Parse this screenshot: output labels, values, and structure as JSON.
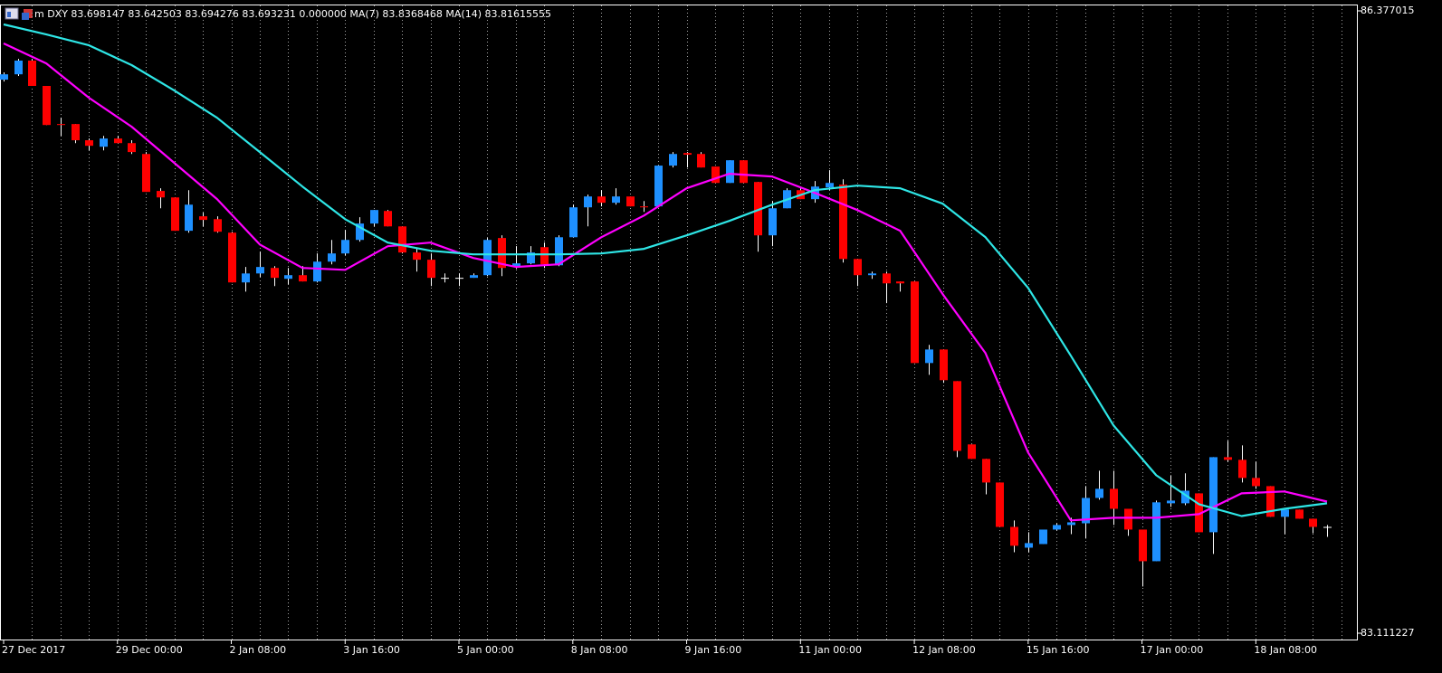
{
  "chart_data": {
    "type": "candlestick",
    "title": "m DXY 83.698147 83.642503 83.694276 83.693231 0.000000 MA(7) 83.8368468 MA(14) 83.81615555",
    "up_color": "#1e90ff",
    "down_color": "#ff0000",
    "wick_color": "#ffffff",
    "grid": true,
    "ylim": [
      83.111227,
      86.377015
    ],
    "yticks": [
      86.377015,
      83.111227
    ],
    "xticks": [
      {
        "value": 0,
        "label": "27 Dec 2017"
      },
      {
        "value": 8,
        "label": "29 Dec 00:00"
      },
      {
        "value": 16,
        "label": "2 Jan 08:00"
      },
      {
        "value": 24,
        "label": "3 Jan 16:00"
      },
      {
        "value": 32,
        "label": "5 Jan 00:00"
      },
      {
        "value": 40,
        "label": "8 Jan 08:00"
      },
      {
        "value": 48,
        "label": "9 Jan 16:00"
      },
      {
        "value": 56,
        "label": "11 Jan 00:00"
      },
      {
        "value": 64,
        "label": "12 Jan 08:00"
      },
      {
        "value": 72,
        "label": "15 Jan 16:00"
      },
      {
        "value": 80,
        "label": "17 Jan 00:00"
      },
      {
        "value": 88,
        "label": "18 Jan 08:00"
      }
    ],
    "open": [
      86.016,
      86.044,
      86.116,
      85.983,
      85.783,
      85.783,
      85.698,
      85.664,
      85.707,
      85.683,
      85.626,
      85.432,
      85.398,
      85.223,
      85.299,
      85.284,
      85.213,
      84.952,
      84.999,
      85.028,
      84.971,
      84.99,
      84.957,
      85.061,
      85.104,
      85.175,
      85.261,
      85.327,
      85.246,
      85.109,
      85.071,
      84.976,
      84.976,
      84.976,
      84.99,
      85.185,
      85.037,
      85.052,
      85.137,
      85.042,
      85.189,
      85.346,
      85.403,
      85.37,
      85.403,
      85.351,
      85.351,
      85.565,
      85.631,
      85.626,
      85.56,
      85.474,
      85.593,
      85.479,
      85.199,
      85.341,
      85.436,
      85.389,
      85.451,
      85.465,
      85.075,
      84.99,
      84.999,
      84.957,
      84.957,
      84.529,
      84.6,
      84.434,
      84.102,
      84.026,
      83.902,
      83.669,
      83.56,
      83.579,
      83.655,
      83.679,
      83.688,
      83.821,
      83.869,
      83.764,
      83.655,
      83.489,
      83.793,
      83.793,
      83.845,
      83.641,
      84.035,
      84.021,
      83.926,
      83.883,
      83.722,
      83.76,
      83.712,
      83.669
    ],
    "high": [
      86.054,
      86.125,
      86.125,
      85.983,
      85.816,
      85.783,
      85.707,
      85.721,
      85.721,
      85.698,
      85.636,
      85.446,
      85.398,
      85.436,
      85.318,
      85.299,
      85.218,
      85.033,
      85.113,
      85.037,
      85.028,
      85.037,
      85.104,
      85.175,
      85.227,
      85.294,
      85.332,
      85.332,
      85.246,
      85.128,
      85.104,
      84.999,
      84.999,
      84.999,
      85.185,
      85.199,
      85.142,
      85.142,
      85.161,
      85.199,
      85.36,
      85.413,
      85.436,
      85.446,
      85.403,
      85.379,
      85.565,
      85.636,
      85.636,
      85.636,
      85.56,
      85.593,
      85.593,
      85.479,
      85.379,
      85.446,
      85.455,
      85.484,
      85.541,
      85.493,
      85.075,
      85.009,
      85.009,
      84.957,
      84.957,
      84.624,
      84.6,
      84.434,
      84.102,
      84.026,
      83.902,
      83.703,
      83.641,
      83.655,
      83.688,
      83.717,
      83.883,
      83.964,
      83.964,
      83.764,
      83.655,
      83.807,
      83.94,
      83.95,
      83.845,
      84.035,
      84.121,
      84.097,
      84.011,
      83.883,
      83.76,
      83.76,
      83.712,
      83.679
    ],
    "low": [
      86.006,
      86.035,
      85.983,
      85.778,
      85.721,
      85.683,
      85.645,
      85.645,
      85.683,
      85.626,
      85.427,
      85.341,
      85.223,
      85.213,
      85.246,
      85.213,
      84.952,
      84.904,
      84.98,
      84.933,
      84.942,
      84.957,
      84.952,
      85.047,
      85.094,
      85.166,
      85.246,
      85.246,
      85.104,
      85.009,
      84.933,
      84.952,
      84.933,
      84.976,
      84.985,
      84.985,
      85.023,
      85.047,
      85.028,
      85.037,
      85.189,
      85.246,
      85.351,
      85.36,
      85.351,
      85.322,
      85.346,
      85.555,
      85.555,
      85.555,
      85.474,
      85.474,
      85.474,
      85.113,
      85.142,
      85.341,
      85.389,
      85.37,
      85.436,
      85.056,
      84.933,
      84.971,
      84.843,
      84.904,
      84.529,
      84.467,
      84.425,
      84.035,
      84.026,
      83.84,
      83.669,
      83.536,
      83.536,
      83.579,
      83.65,
      83.631,
      83.608,
      83.812,
      83.679,
      83.622,
      83.356,
      83.489,
      83.774,
      83.783,
      83.641,
      83.527,
      84.011,
      83.902,
      83.869,
      83.722,
      83.631,
      83.712,
      83.636,
      83.617
    ],
    "close": [
      86.044,
      86.116,
      85.983,
      85.778,
      85.778,
      85.698,
      85.669,
      85.707,
      85.683,
      85.636,
      85.427,
      85.398,
      85.223,
      85.36,
      85.28,
      85.218,
      84.952,
      84.999,
      85.033,
      84.976,
      84.99,
      84.957,
      85.061,
      85.104,
      85.175,
      85.261,
      85.332,
      85.246,
      85.109,
      85.071,
      84.976,
      84.976,
      84.976,
      84.99,
      85.175,
      85.028,
      85.052,
      85.109,
      85.047,
      85.189,
      85.346,
      85.403,
      85.37,
      85.403,
      85.351,
      85.346,
      85.565,
      85.626,
      85.622,
      85.555,
      85.474,
      85.593,
      85.474,
      85.199,
      85.341,
      85.436,
      85.389,
      85.455,
      85.474,
      85.075,
      84.99,
      84.999,
      84.947,
      84.947,
      84.529,
      84.6,
      84.439,
      84.068,
      84.026,
      83.902,
      83.669,
      83.57,
      83.584,
      83.655,
      83.679,
      83.693,
      83.821,
      83.869,
      83.764,
      83.655,
      83.489,
      83.798,
      83.807,
      83.859,
      83.641,
      84.035,
      84.021,
      83.926,
      83.883,
      83.722,
      83.76,
      83.712,
      83.669,
      83.669
    ],
    "lines": [
      {
        "color": "#ff00ff",
        "x": [
          0,
          3,
          6,
          9,
          12,
          15,
          18,
          21,
          24,
          27,
          30,
          33,
          36,
          39,
          42,
          45,
          48,
          51,
          54,
          57,
          60,
          63,
          66,
          69,
          72,
          75,
          78,
          81,
          84,
          87,
          90,
          93
        ],
        "values": [
          86.206,
          86.101,
          85.921,
          85.769,
          85.579,
          85.389,
          85.151,
          85.028,
          85.018,
          85.142,
          85.161,
          85.08,
          85.033,
          85.047,
          85.189,
          85.303,
          85.446,
          85.522,
          85.508,
          85.422,
          85.332,
          85.223,
          84.89,
          84.581,
          84.059,
          83.703,
          83.717,
          83.717,
          83.736,
          83.845,
          83.855,
          83.802
        ]
      },
      {
        "color": "#2ee6e6",
        "x": [
          0,
          3,
          6,
          9,
          12,
          15,
          18,
          21,
          24,
          27,
          30,
          33,
          36,
          39,
          42,
          45,
          48,
          51,
          54,
          57,
          60,
          63,
          66,
          69,
          72,
          75,
          78,
          81,
          84,
          87,
          90,
          93
        ],
        "values": [
          86.306,
          86.253,
          86.196,
          86.092,
          85.959,
          85.816,
          85.636,
          85.455,
          85.284,
          85.161,
          85.118,
          85.099,
          85.099,
          85.099,
          85.104,
          85.128,
          85.199,
          85.275,
          85.36,
          85.436,
          85.46,
          85.446,
          85.365,
          85.189,
          84.923,
          84.567,
          84.201,
          83.94,
          83.788,
          83.726,
          83.764,
          83.793
        ]
      }
    ]
  }
}
